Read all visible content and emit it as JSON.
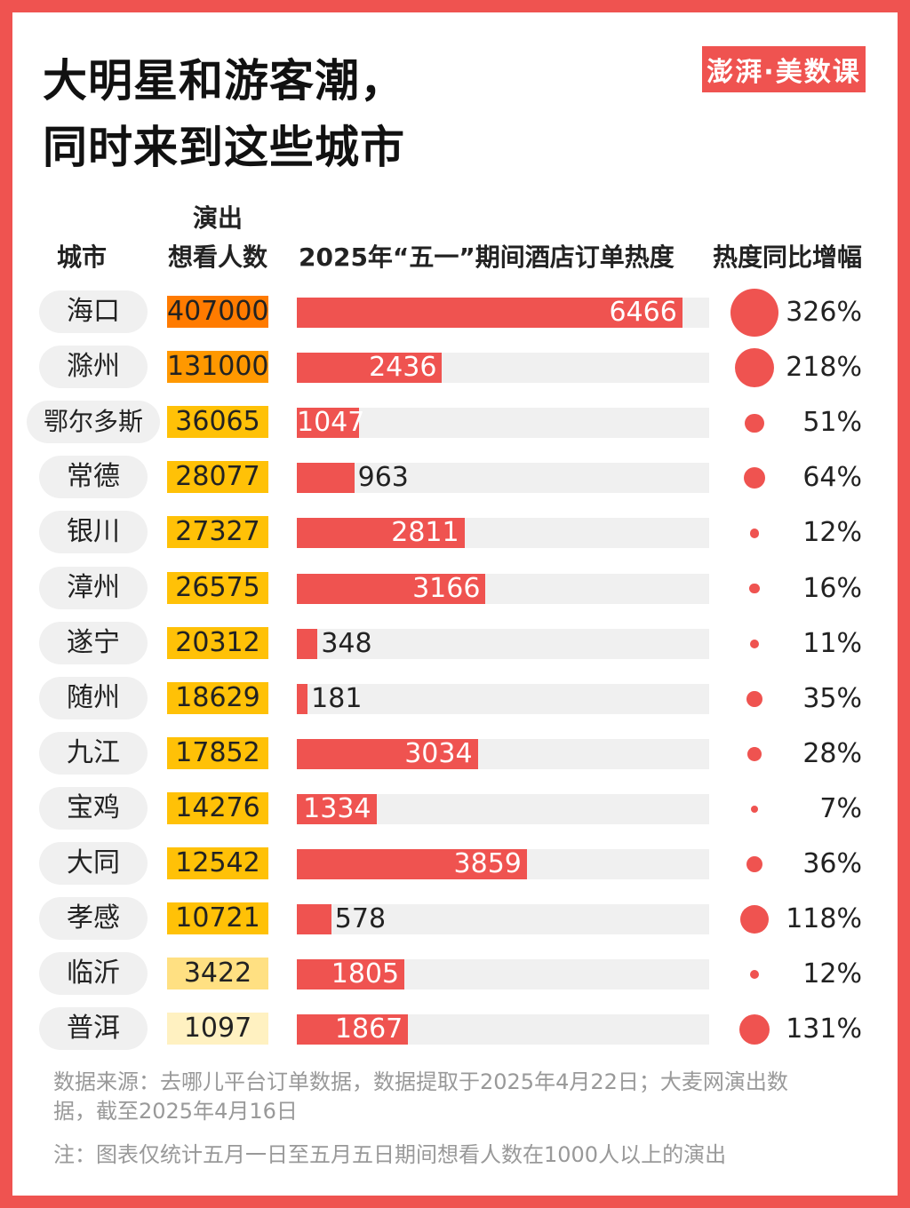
{
  "title": [
    "大明星和游客潮，",
    "同时来到这些城市"
  ],
  "logo_text": "澎湃·美数课",
  "colors": {
    "background": "#ef5350",
    "bar": "#ef5350",
    "track": "#f0f0f0",
    "views_scale": [
      "#ff7b00",
      "#ff9800",
      "#ffc107",
      "#ffe082",
      "#fff1c1"
    ]
  },
  "chart_data": {
    "type": "table",
    "columns": [
      "城市",
      "演出想看人数",
      "2025年“五一”期间酒店订单热度",
      "热度同比增幅"
    ],
    "bar_max": 6466,
    "rows": [
      {
        "city": "海口",
        "views": 407000,
        "views_label": "407000",
        "heat": 6466,
        "heat_label": "6466",
        "growth": 326,
        "growth_label": "326%"
      },
      {
        "city": "滁州",
        "views": 131000,
        "views_label": "131000",
        "heat": 2436,
        "heat_label": "2436",
        "growth": 218,
        "growth_label": "218%"
      },
      {
        "city": "鄂尔多斯",
        "views": 36065,
        "views_label": "36065",
        "heat": 1047,
        "heat_label": "1047",
        "growth": 51,
        "growth_label": "51%"
      },
      {
        "city": "常德",
        "views": 28077,
        "views_label": "28077",
        "heat": 963,
        "heat_label": "963",
        "growth": 64,
        "growth_label": "64%"
      },
      {
        "city": "银川",
        "views": 27327,
        "views_label": "27327",
        "heat": 2811,
        "heat_label": "2811",
        "growth": 12,
        "growth_label": "12%"
      },
      {
        "city": "漳州",
        "views": 26575,
        "views_label": "26575",
        "heat": 3166,
        "heat_label": "3166",
        "growth": 16,
        "growth_label": "16%"
      },
      {
        "city": "遂宁",
        "views": 20312,
        "views_label": "20312",
        "heat": 348,
        "heat_label": "348",
        "growth": 11,
        "growth_label": "11%"
      },
      {
        "city": "随州",
        "views": 18629,
        "views_label": "18629",
        "heat": 181,
        "heat_label": "181",
        "growth": 35,
        "growth_label": "35%"
      },
      {
        "city": "九江",
        "views": 17852,
        "views_label": "17852",
        "heat": 3034,
        "heat_label": "3034",
        "growth": 28,
        "growth_label": "28%"
      },
      {
        "city": "宝鸡",
        "views": 14276,
        "views_label": "14276",
        "heat": 1334,
        "heat_label": "1334",
        "growth": 7,
        "growth_label": "7%"
      },
      {
        "city": "大同",
        "views": 12542,
        "views_label": "12542",
        "heat": 3859,
        "heat_label": "3859",
        "growth": 36,
        "growth_label": "36%"
      },
      {
        "city": "孝感",
        "views": 10721,
        "views_label": "10721",
        "heat": 578,
        "heat_label": "578",
        "growth": 118,
        "growth_label": "118%"
      },
      {
        "city": "临沂",
        "views": 3422,
        "views_label": "3422",
        "heat": 1805,
        "heat_label": "1805",
        "growth": 12,
        "growth_label": "12%"
      },
      {
        "city": "普洱",
        "views": 1097,
        "views_label": "1097",
        "heat": 1867,
        "heat_label": "1867",
        "growth": 131,
        "growth_label": "131%"
      }
    ]
  },
  "headers": {
    "city": "城市",
    "views_line1": "演出",
    "views_line2": "想看人数",
    "heat": "2025年“五一”期间酒店订单热度",
    "growth": "热度同比增幅"
  },
  "footer": {
    "source_line1": "数据来源：去哪儿平台订单数据，数据提取于2025年4月22日；大麦网演出数",
    "source_line2": "据，截至2025年4月16日",
    "note": "注：图表仅统计五月一日至五月五日期间想看人数在1000人以上的演出"
  }
}
